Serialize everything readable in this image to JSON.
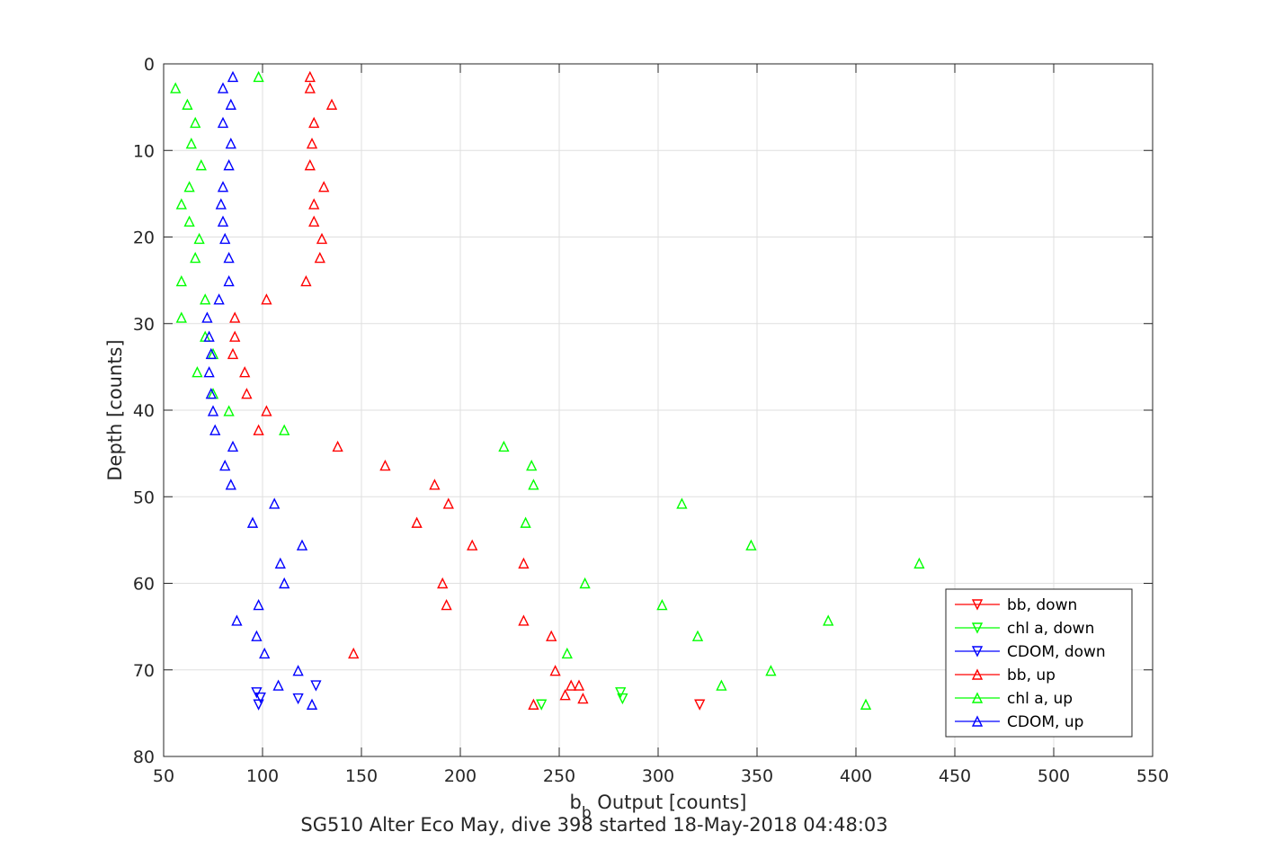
{
  "chart_data": {
    "type": "scatter",
    "xlabel_main": "b",
    "xlabel_sub": "b",
    "xlabel_rest": " Output [counts]",
    "ylabel": "Depth [counts]",
    "title": "SG510 Alter Eco May, dive 398 started 18-May-2018 04:48:03",
    "xlim": [
      50,
      550
    ],
    "ylim": [
      0,
      80
    ],
    "y_reversed": true,
    "xticks": [
      50,
      100,
      150,
      200,
      250,
      300,
      350,
      400,
      450,
      500,
      550
    ],
    "yticks": [
      0,
      10,
      20,
      30,
      40,
      50,
      60,
      70,
      80
    ],
    "grid": true,
    "legend_position": "bottom-right",
    "series": [
      {
        "name": "bb, down",
        "color": "#ff0000",
        "marker": "triangle-down",
        "points": [
          [
            321,
            74
          ]
        ]
      },
      {
        "name": "chl a, down",
        "color": "#00ff00",
        "marker": "triangle-down",
        "points": [
          [
            281,
            72.6
          ],
          [
            282,
            73.3
          ],
          [
            241,
            74
          ]
        ]
      },
      {
        "name": "CDOM, down",
        "color": "#0000ff",
        "marker": "triangle-down",
        "points": [
          [
            127,
            71.8
          ],
          [
            97,
            72.6
          ],
          [
            99,
            73.2
          ],
          [
            118,
            73.3
          ],
          [
            98,
            74
          ]
        ]
      },
      {
        "name": "bb, up",
        "color": "#ff0000",
        "marker": "triangle-up",
        "points": [
          [
            124,
            1.5
          ],
          [
            124,
            2.8
          ],
          [
            135,
            4.7
          ],
          [
            126,
            6.8
          ],
          [
            125,
            9.2
          ],
          [
            124,
            11.7
          ],
          [
            131,
            14.2
          ],
          [
            126,
            16.2
          ],
          [
            126,
            18.2
          ],
          [
            130,
            20.2
          ],
          [
            129,
            22.4
          ],
          [
            122,
            25.1
          ],
          [
            102,
            27.2
          ],
          [
            86,
            29.3
          ],
          [
            86,
            31.5
          ],
          [
            85,
            33.5
          ],
          [
            91,
            35.6
          ],
          [
            92,
            38.1
          ],
          [
            102,
            40.1
          ],
          [
            98,
            42.3
          ],
          [
            138,
            44.2
          ],
          [
            162,
            46.4
          ],
          [
            187,
            48.6
          ],
          [
            194,
            50.8
          ],
          [
            178,
            53
          ],
          [
            206,
            55.6
          ],
          [
            232,
            57.7
          ],
          [
            191,
            60
          ],
          [
            193,
            62.5
          ],
          [
            232,
            64.3
          ],
          [
            246,
            66.1
          ],
          [
            146,
            68.1
          ],
          [
            248,
            70.1
          ],
          [
            256,
            71.8
          ],
          [
            260,
            71.8
          ],
          [
            253,
            72.9
          ],
          [
            262,
            73.3
          ],
          [
            237,
            74
          ]
        ]
      },
      {
        "name": "chl a, up",
        "color": "#00ff00",
        "marker": "triangle-up",
        "points": [
          [
            98,
            1.5
          ],
          [
            56,
            2.8
          ],
          [
            62,
            4.7
          ],
          [
            66,
            6.8
          ],
          [
            64,
            9.2
          ],
          [
            69,
            11.7
          ],
          [
            63,
            14.2
          ],
          [
            59,
            16.2
          ],
          [
            63,
            18.2
          ],
          [
            68,
            20.2
          ],
          [
            66,
            22.4
          ],
          [
            59,
            25.1
          ],
          [
            71,
            27.2
          ],
          [
            59,
            29.3
          ],
          [
            71,
            31.5
          ],
          [
            75,
            33.5
          ],
          [
            67,
            35.6
          ],
          [
            75,
            38.1
          ],
          [
            83,
            40.1
          ],
          [
            111,
            42.3
          ],
          [
            222,
            44.2
          ],
          [
            236,
            46.4
          ],
          [
            237,
            48.6
          ],
          [
            312,
            50.8
          ],
          [
            233,
            53
          ],
          [
            347,
            55.6
          ],
          [
            432,
            57.7
          ],
          [
            263,
            60
          ],
          [
            302,
            62.5
          ],
          [
            386,
            64.3
          ],
          [
            320,
            66.1
          ],
          [
            254,
            68.1
          ],
          [
            357,
            70.1
          ],
          [
            332,
            71.8
          ],
          [
            405,
            74
          ]
        ]
      },
      {
        "name": "CDOM, up",
        "color": "#0000ff",
        "marker": "triangle-up",
        "points": [
          [
            85,
            1.5
          ],
          [
            80,
            2.8
          ],
          [
            84,
            4.7
          ],
          [
            80,
            6.8
          ],
          [
            84,
            9.2
          ],
          [
            83,
            11.7
          ],
          [
            80,
            14.2
          ],
          [
            79,
            16.2
          ],
          [
            80,
            18.2
          ],
          [
            81,
            20.2
          ],
          [
            83,
            22.4
          ],
          [
            83,
            25.1
          ],
          [
            78,
            27.2
          ],
          [
            72,
            29.3
          ],
          [
            73,
            31.5
          ],
          [
            74,
            33.5
          ],
          [
            73,
            35.6
          ],
          [
            74,
            38.1
          ],
          [
            75,
            40.1
          ],
          [
            76,
            42.3
          ],
          [
            85,
            44.2
          ],
          [
            81,
            46.4
          ],
          [
            84,
            48.6
          ],
          [
            106,
            50.8
          ],
          [
            95,
            53
          ],
          [
            120,
            55.6
          ],
          [
            109,
            57.7
          ],
          [
            111,
            60
          ],
          [
            98,
            62.5
          ],
          [
            87,
            64.3
          ],
          [
            97,
            66.1
          ],
          [
            101,
            68.1
          ],
          [
            118,
            70.1
          ],
          [
            108,
            71.8
          ],
          [
            125,
            74
          ]
        ]
      }
    ]
  }
}
